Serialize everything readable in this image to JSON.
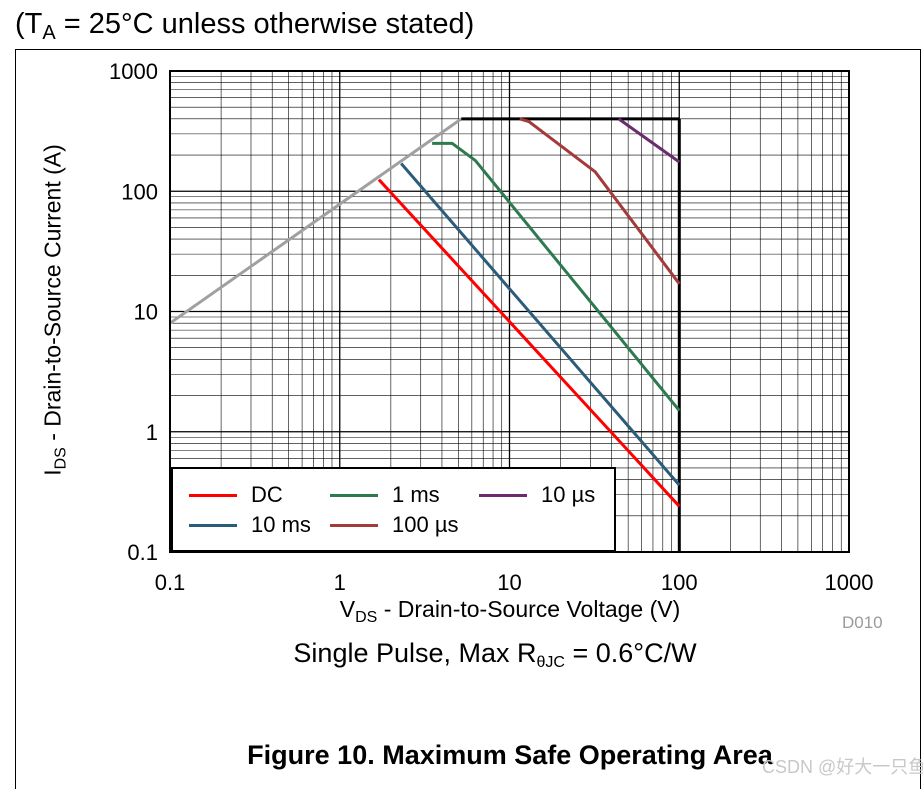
{
  "header": {
    "prefix": "(T",
    "sub": "A",
    "suffix": " = 25°C unless otherwise stated)"
  },
  "chart_data": {
    "type": "line",
    "x_scale": "log",
    "y_scale": "log",
    "xlim": [
      0.1,
      1000
    ],
    "ylim": [
      0.1,
      1000
    ],
    "x_ticks": [
      "0.1",
      "1",
      "10",
      "100",
      "1000"
    ],
    "y_ticks": [
      "1000",
      "100",
      "10",
      "1",
      "0.1"
    ],
    "xlabel": {
      "main": "V",
      "sub": "DS",
      "rest": " - Drain-to-Source Voltage (V)"
    },
    "ylabel": {
      "main": "I",
      "sub": "DS",
      "rest": " - Drain-to-Source Current (A)"
    },
    "grid": true,
    "legend_position": "bottom-left",
    "boundaries": {
      "rdson_limit": {
        "color": "#a0a0a0",
        "points": [
          [
            0.1,
            8
          ],
          [
            5.2,
            400
          ]
        ]
      },
      "current_limit": {
        "color": "#000000",
        "points": [
          [
            5.2,
            400
          ],
          [
            100,
            400
          ]
        ]
      },
      "voltage_limit": {
        "color": "#000000",
        "points": [
          [
            100,
            400
          ],
          [
            100,
            0.1
          ]
        ]
      }
    },
    "series": [
      {
        "name": "DC",
        "color": "#ff0000",
        "points": [
          [
            1.7,
            125
          ],
          [
            100,
            0.24
          ]
        ]
      },
      {
        "name": "10 ms",
        "color": "#2b5c7a",
        "points": [
          [
            2.3,
            170
          ],
          [
            100,
            0.36
          ]
        ]
      },
      {
        "name": "1 ms",
        "color": "#2e7a4f",
        "points": [
          [
            3.5,
            250
          ],
          [
            4.6,
            250
          ],
          [
            6.3,
            180
          ],
          [
            100,
            1.5
          ]
        ]
      },
      {
        "name": "100 µs",
        "color": "#a33b3b",
        "points": [
          [
            11.5,
            400
          ],
          [
            13,
            380
          ],
          [
            32,
            145
          ],
          [
            100,
            17
          ]
        ]
      },
      {
        "name": "10 µs",
        "color": "#6a2c6e",
        "points": [
          [
            44,
            400
          ],
          [
            100,
            175
          ]
        ]
      }
    ],
    "legend_order": [
      "DC",
      "1 ms",
      "10 µs",
      "10 ms",
      "100 µs"
    ]
  },
  "figure_id": "D010",
  "note": {
    "prefix": "Single Pulse, Max R",
    "sub": "θJC",
    "suffix": " = 0.6°C/W"
  },
  "caption": "Figure 10. Maximum Safe Operating Area",
  "watermark": "CSDN @好大一只鱼"
}
